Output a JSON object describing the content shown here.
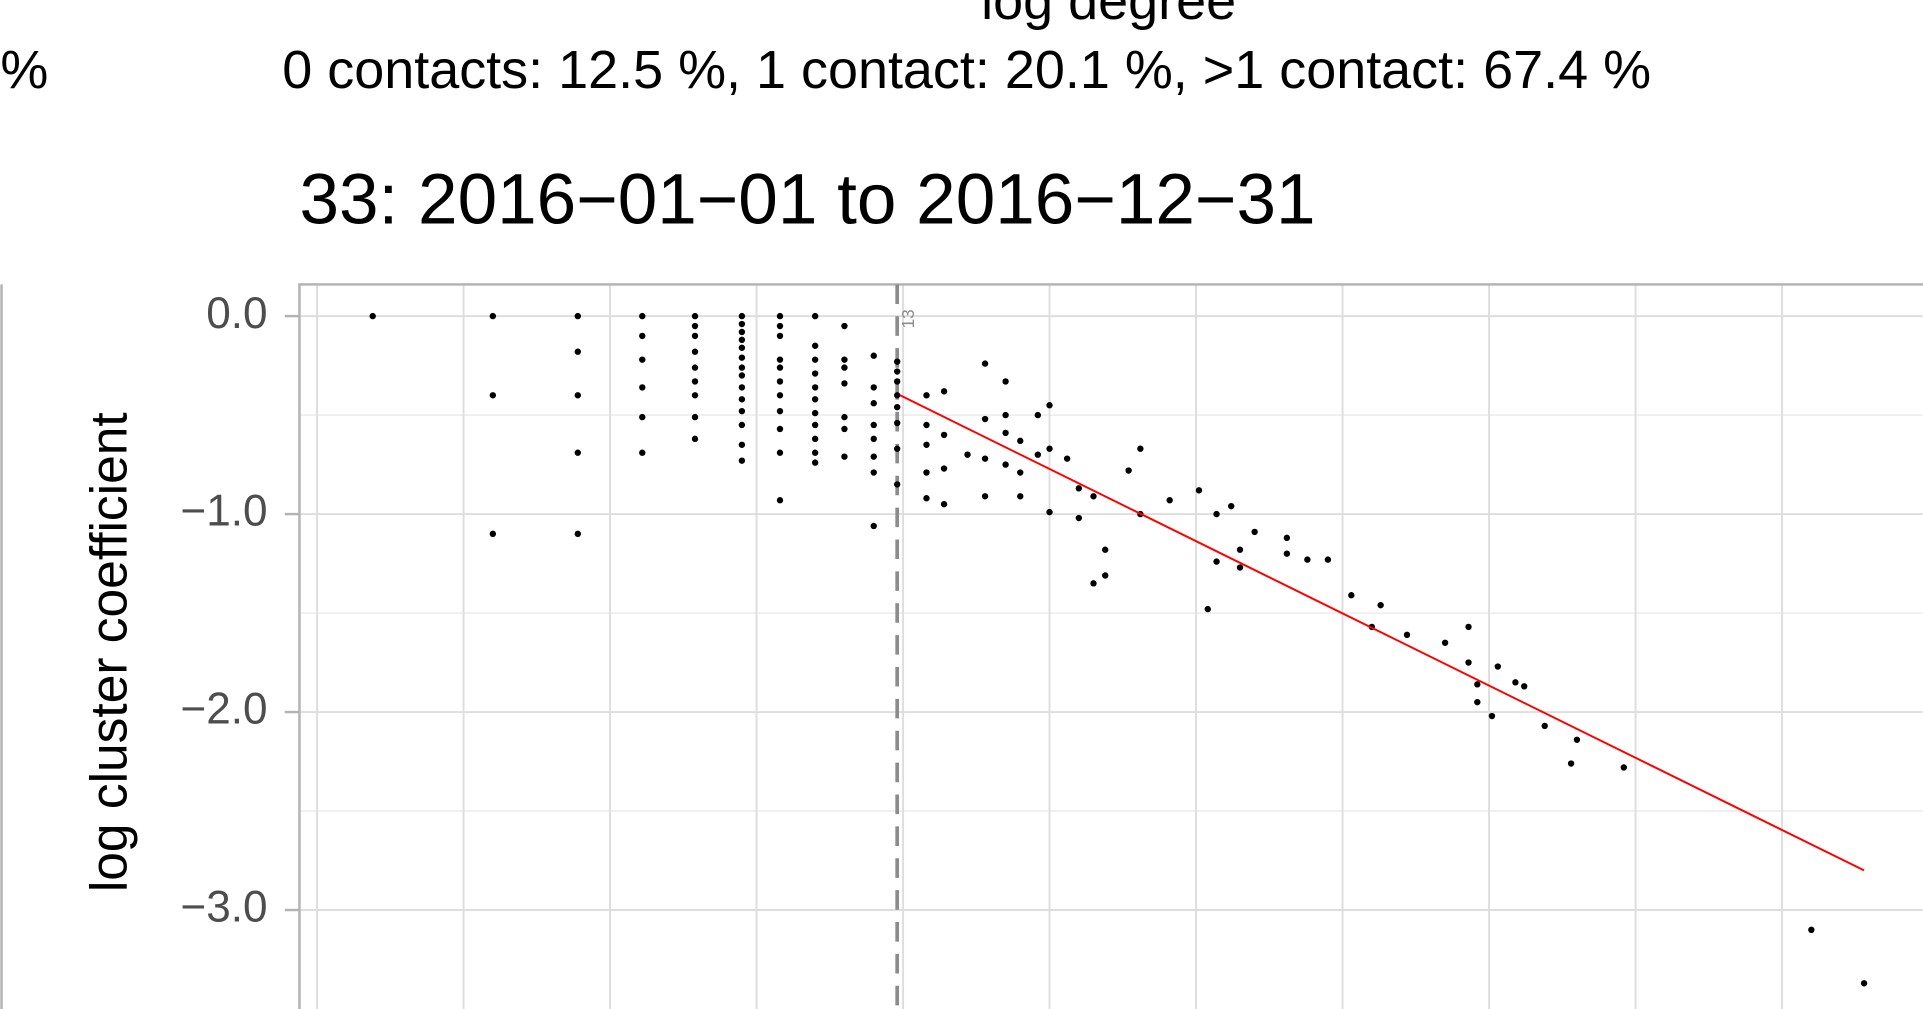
{
  "left_panel_fragment": "%",
  "chart_data": {
    "type": "scatter",
    "top_label": "log degree",
    "subtitle": "0 contacts: 12.5 %, 1 contact: 20.1 %, >1 contact: 67.4 %",
    "title": "33: 2016−01−01 to 2016−12−31",
    "y_label": "log cluster coefficient",
    "xlim": [
      0.44,
      5.98
    ],
    "ylim": [
      -3.5,
      0.16
    ],
    "xgrid": [
      0.5,
      1,
      1.5,
      2,
      2.5,
      3,
      3.5,
      4,
      4.5,
      5,
      5.5
    ],
    "yticks": [
      {
        "value": 0,
        "label": "0.0"
      },
      {
        "value": -1,
        "label": "−1.0"
      },
      {
        "value": -2,
        "label": "−2.0"
      },
      {
        "value": -3,
        "label": "−3.0"
      }
    ],
    "grid": true,
    "color": "#000000",
    "cutoff": {
      "x": 2.48,
      "label": "13",
      "color": "#8c8c8c"
    },
    "fit_line": {
      "x": [
        2.49,
        5.78
      ],
      "y": [
        -0.4,
        -2.8
      ],
      "color": "#ff0000"
    },
    "x": [
      0.69,
      1.1,
      1.1,
      1.1,
      1.39,
      1.39,
      1.39,
      1.39,
      1.39,
      1.61,
      1.61,
      1.61,
      1.61,
      1.61,
      1.61,
      1.79,
      1.79,
      1.79,
      1.79,
      1.79,
      1.79,
      1.79,
      1.79,
      1.79,
      1.95,
      1.95,
      1.95,
      1.95,
      1.95,
      1.95,
      1.95,
      1.95,
      1.95,
      1.95,
      1.95,
      1.95,
      1.95,
      1.95,
      2.08,
      2.08,
      2.08,
      2.08,
      2.08,
      2.08,
      2.08,
      2.08,
      2.08,
      2.08,
      2.08,
      2.2,
      2.2,
      2.2,
      2.2,
      2.2,
      2.2,
      2.2,
      2.2,
      2.2,
      2.2,
      2.2,
      2.3,
      2.3,
      2.3,
      2.3,
      2.3,
      2.3,
      2.3,
      2.4,
      2.4,
      2.4,
      2.4,
      2.4,
      2.4,
      2.4,
      2.4,
      2.48,
      2.48,
      2.48,
      2.48,
      2.48,
      2.48,
      2.48,
      2.48,
      2.58,
      2.58,
      2.58,
      2.58,
      2.58,
      2.64,
      2.64,
      2.64,
      2.64,
      2.72,
      2.78,
      2.78,
      2.78,
      2.78,
      2.85,
      2.85,
      2.85,
      2.85,
      2.9,
      2.9,
      2.9,
      2.96,
      2.96,
      3.0,
      3.0,
      3.0,
      3.06,
      3.1,
      3.1,
      3.15,
      3.15,
      3.19,
      3.19,
      3.27,
      3.31,
      3.31,
      3.41,
      3.51,
      3.54,
      3.57,
      3.57,
      3.62,
      3.65,
      3.65,
      3.7,
      3.81,
      3.81,
      3.88,
      3.95,
      4.03,
      4.1,
      4.13,
      4.22,
      4.35,
      4.43,
      4.43,
      4.46,
      4.46,
      4.51,
      4.53,
      4.59,
      4.62,
      4.69,
      4.78,
      4.8,
      4.96,
      5.6,
      5.78
    ],
    "values": [
      0,
      0,
      -0.4,
      -1.1,
      0,
      -0.18,
      -0.4,
      -0.69,
      -1.1,
      0,
      -0.1,
      -0.22,
      -0.36,
      -0.51,
      -0.69,
      0,
      -0.05,
      -0.1,
      -0.18,
      -0.26,
      -0.33,
      -0.4,
      -0.51,
      -0.62,
      0,
      -0.04,
      -0.08,
      -0.12,
      -0.16,
      -0.21,
      -0.26,
      -0.3,
      -0.36,
      -0.42,
      -0.48,
      -0.55,
      -0.65,
      -0.73,
      0,
      -0.05,
      -0.1,
      -0.22,
      -0.26,
      -0.33,
      -0.4,
      -0.48,
      -0.57,
      -0.69,
      -0.93,
      0,
      -0.15,
      -0.22,
      -0.29,
      -0.36,
      -0.42,
      -0.49,
      -0.55,
      -0.62,
      -0.69,
      -0.74,
      -0.05,
      -0.22,
      -0.26,
      -0.34,
      -0.51,
      -0.57,
      -0.71,
      -0.2,
      -0.36,
      -0.44,
      -0.55,
      -0.62,
      -0.71,
      -0.79,
      -1.06,
      -0.23,
      -0.28,
      -0.33,
      -0.4,
      -0.46,
      -0.54,
      -0.67,
      -0.85,
      -0.4,
      -0.55,
      -0.65,
      -0.79,
      -0.92,
      -0.38,
      -0.6,
      -0.77,
      -0.95,
      -0.7,
      -0.24,
      -0.52,
      -0.72,
      -0.91,
      -0.33,
      -0.5,
      -0.59,
      -0.75,
      -0.63,
      -0.79,
      -0.91,
      -0.5,
      -0.7,
      -0.45,
      -0.67,
      -0.99,
      -0.72,
      -1.02,
      -0.87,
      -0.91,
      -1.35,
      -1.31,
      -1.18,
      -0.78,
      -0.67,
      -1.0,
      -0.93,
      -0.88,
      -1.48,
      -1.0,
      -1.24,
      -0.96,
      -1.18,
      -1.27,
      -1.09,
      -1.12,
      -1.2,
      -1.23,
      -1.23,
      -1.41,
      -1.57,
      -1.46,
      -1.61,
      -1.65,
      -1.57,
      -1.75,
      -1.86,
      -1.95,
      -2.02,
      -1.77,
      -1.85,
      -1.87,
      -2.07,
      -2.26,
      -2.14,
      -2.28,
      -3.1,
      -3.37
    ]
  }
}
